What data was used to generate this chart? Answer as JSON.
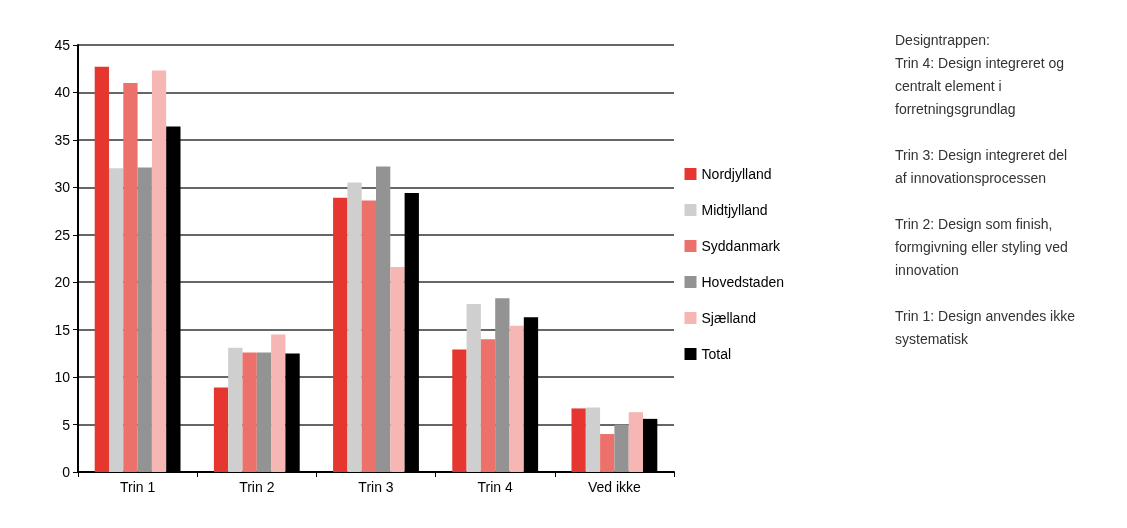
{
  "chart_data": {
    "type": "bar",
    "categories": [
      "Trin 1",
      "Trin 2",
      "Trin 3",
      "Trin 4",
      "Ved ikke"
    ],
    "series": [
      {
        "name": "Nordjylland",
        "color": "#e53630",
        "values": [
          42.7,
          8.9,
          28.9,
          12.9,
          6.7
        ]
      },
      {
        "name": "Midtjylland",
        "color": "#cfcfcf",
        "values": [
          32,
          13.1,
          30.5,
          17.7,
          6.8
        ]
      },
      {
        "name": "Syddanmark",
        "color": "#ec716b",
        "values": [
          41,
          12.6,
          28.6,
          14,
          4.0
        ]
      },
      {
        "name": "Hovedstaden",
        "color": "#939393",
        "values": [
          32.1,
          12.6,
          32.2,
          18.3,
          5.0
        ]
      },
      {
        "name": "Sjælland",
        "color": "#f5b6b4",
        "values": [
          42.3,
          14.5,
          21.6,
          15.4,
          6.3
        ]
      },
      {
        "name": "Total",
        "color": "#000000",
        "values": [
          36.4,
          12.5,
          29.4,
          16.3,
          5.6
        ]
      }
    ],
    "ylim": [
      0,
      45
    ],
    "yticks": [
      0,
      5,
      10,
      15,
      20,
      25,
      30,
      35,
      40,
      45
    ],
    "grid": "y",
    "legend": "right",
    "annotations": [
      "Designtrappen:",
      "Trin 4: Design integreret og centralt element i forretningsgrundlag",
      "Trin 3: Design integreret del af innovationsprocessen",
      "Trin 2: Design som finish, formgivning eller styling ved innovation",
      "Trin 1: Design anvendes ikke systematisk"
    ]
  }
}
